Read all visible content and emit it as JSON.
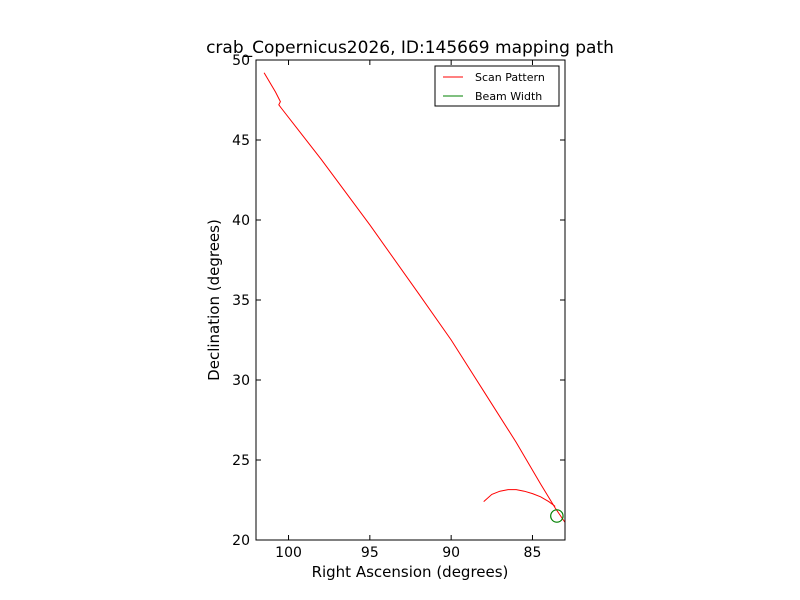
{
  "chart_data": {
    "type": "line",
    "title": "crab_Copernicus2026, ID:145669 mapping path",
    "xlabel": "Right Ascension (degrees)",
    "ylabel": "Declination (degrees)",
    "xlim": [
      102,
      83
    ],
    "ylim": [
      20,
      50
    ],
    "x_ticks": [
      100,
      95,
      90,
      85
    ],
    "y_ticks": [
      20,
      25,
      30,
      35,
      40,
      45,
      50
    ],
    "x_tick_labels": [
      "100",
      "95",
      "90",
      "85"
    ],
    "y_tick_labels": [
      "20",
      "25",
      "30",
      "35",
      "40",
      "45",
      "50"
    ],
    "grid": false,
    "legend_position": "top-right",
    "series": [
      {
        "name": "Scan Pattern",
        "color": "#ff0000",
        "x": [
          101.5,
          100.8,
          100.5,
          100.6,
          100.45,
          98.0,
          95.0,
          92.0,
          90.0,
          88.0,
          86.0,
          84.5,
          83.6,
          83.0
        ],
        "y": [
          49.2,
          48.0,
          47.4,
          47.2,
          47.0,
          43.8,
          39.7,
          35.4,
          32.5,
          29.3,
          26.1,
          23.5,
          22.0,
          21.1
        ]
      },
      {
        "name": "",
        "color": "#ff0000",
        "x": [
          88.0,
          87.5,
          87.0,
          86.5,
          86.0,
          85.5,
          85.0,
          84.5,
          84.0,
          83.6
        ],
        "y": [
          22.4,
          22.85,
          23.05,
          23.15,
          23.15,
          23.05,
          22.9,
          22.7,
          22.4,
          22.1
        ]
      }
    ],
    "beam": {
      "name": "Beam Width",
      "color": "#008000",
      "center_x": 83.5,
      "center_y": 21.5,
      "radius": 0.38
    }
  }
}
